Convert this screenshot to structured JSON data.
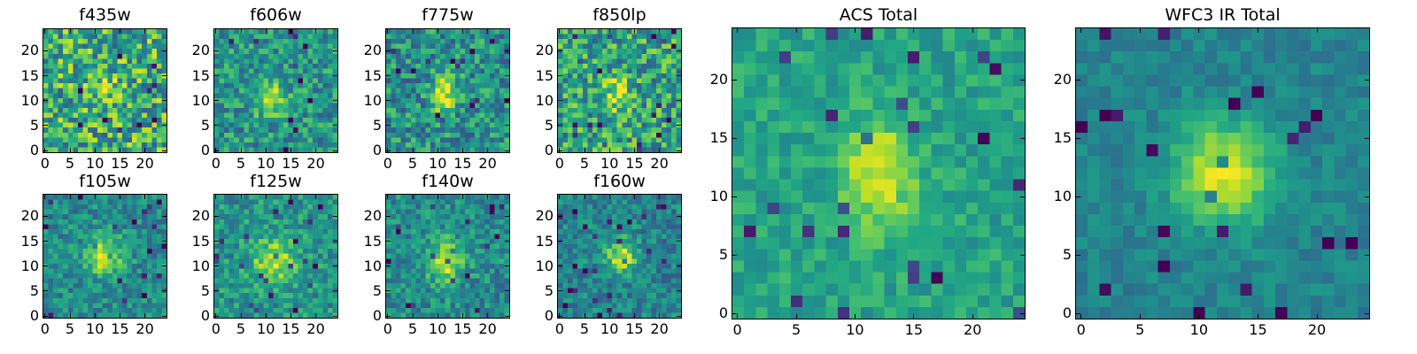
{
  "figure": {
    "colormap": "viridis",
    "panels": [
      {
        "id": "f435w",
        "title": "f435w",
        "size": 25,
        "xticks": [
          0,
          5,
          10,
          15,
          20
        ],
        "yticks": [
          0,
          5,
          10,
          15,
          20
        ],
        "source": {
          "cx": 12.5,
          "cy": 12.8,
          "sx": 2.0,
          "sy": 1.8,
          "amp": 0.18,
          "bg": 0.62,
          "noise": 0.32
        }
      },
      {
        "id": "f606w",
        "title": "f606w",
        "size": 25,
        "xticks": [
          0,
          5,
          10,
          15,
          20
        ],
        "yticks": [
          0,
          5,
          10,
          15,
          20
        ],
        "source": {
          "cx": 11.0,
          "cy": 10.5,
          "sx": 2.2,
          "sy": 2.6,
          "amp": 0.4,
          "bg": 0.52,
          "noise": 0.22
        }
      },
      {
        "id": "f775w",
        "title": "f775w",
        "size": 25,
        "xticks": [
          0,
          5,
          10,
          15,
          20
        ],
        "yticks": [
          0,
          5,
          10,
          15,
          20
        ],
        "source": {
          "cx": 11.5,
          "cy": 11.0,
          "sx": 1.8,
          "sy": 2.6,
          "amp": 0.45,
          "bg": 0.5,
          "noise": 0.24
        }
      },
      {
        "id": "f850lp",
        "title": "f850lp",
        "size": 25,
        "xticks": [
          0,
          5,
          10,
          15,
          20
        ],
        "yticks": [
          0,
          5,
          10,
          15,
          20
        ],
        "source": {
          "cx": 11.5,
          "cy": 11.5,
          "sx": 1.8,
          "sy": 2.4,
          "amp": 0.35,
          "bg": 0.58,
          "noise": 0.28
        }
      },
      {
        "id": "f105w",
        "title": "f105w",
        "size": 25,
        "xticks": [
          0,
          5,
          10,
          15,
          20
        ],
        "yticks": [
          0,
          5,
          10,
          15,
          20
        ],
        "source": {
          "cx": 12.0,
          "cy": 12.0,
          "sx": 2.6,
          "sy": 2.8,
          "amp": 0.45,
          "bg": 0.48,
          "noise": 0.17
        }
      },
      {
        "id": "f125w",
        "title": "f125w",
        "size": 25,
        "xticks": [
          0,
          5,
          10,
          15,
          20
        ],
        "yticks": [
          0,
          5,
          10,
          15,
          20
        ],
        "source": {
          "cx": 11.5,
          "cy": 11.0,
          "sx": 3.0,
          "sy": 3.0,
          "amp": 0.4,
          "bg": 0.52,
          "noise": 0.18
        }
      },
      {
        "id": "f140w",
        "title": "f140w",
        "size": 25,
        "xticks": [
          0,
          5,
          10,
          15,
          20
        ],
        "yticks": [
          0,
          5,
          10,
          15,
          20
        ],
        "source": {
          "cx": 11.5,
          "cy": 11.0,
          "sx": 2.6,
          "sy": 3.0,
          "amp": 0.45,
          "bg": 0.48,
          "noise": 0.18
        }
      },
      {
        "id": "f160w",
        "title": "f160w",
        "size": 25,
        "xticks": [
          0,
          5,
          10,
          15,
          20
        ],
        "yticks": [
          0,
          5,
          10,
          15,
          20
        ],
        "source": {
          "cx": 12.5,
          "cy": 12.0,
          "sx": 2.2,
          "sy": 2.6,
          "amp": 0.45,
          "bg": 0.45,
          "noise": 0.17
        }
      },
      {
        "id": "acs-total",
        "title": "ACS Total",
        "size": 25,
        "xticks": [
          0,
          5,
          10,
          15,
          20
        ],
        "yticks": [
          0,
          5,
          10,
          15,
          20
        ],
        "source": {
          "cx": 12.0,
          "cy": 12.0,
          "sx": 2.2,
          "sy": 3.2,
          "amp": 0.4,
          "bg": 0.58,
          "noise": 0.12
        }
      },
      {
        "id": "wfc3-ir-total",
        "title": "WFC3 IR Total",
        "size": 25,
        "xticks": [
          0,
          5,
          10,
          15,
          20
        ],
        "yticks": [
          0,
          5,
          10,
          15,
          20
        ],
        "source": {
          "cx": 12.0,
          "cy": 12.0,
          "sx": 3.0,
          "sy": 3.0,
          "amp": 0.5,
          "bg": 0.45,
          "noise": 0.09
        }
      }
    ]
  }
}
